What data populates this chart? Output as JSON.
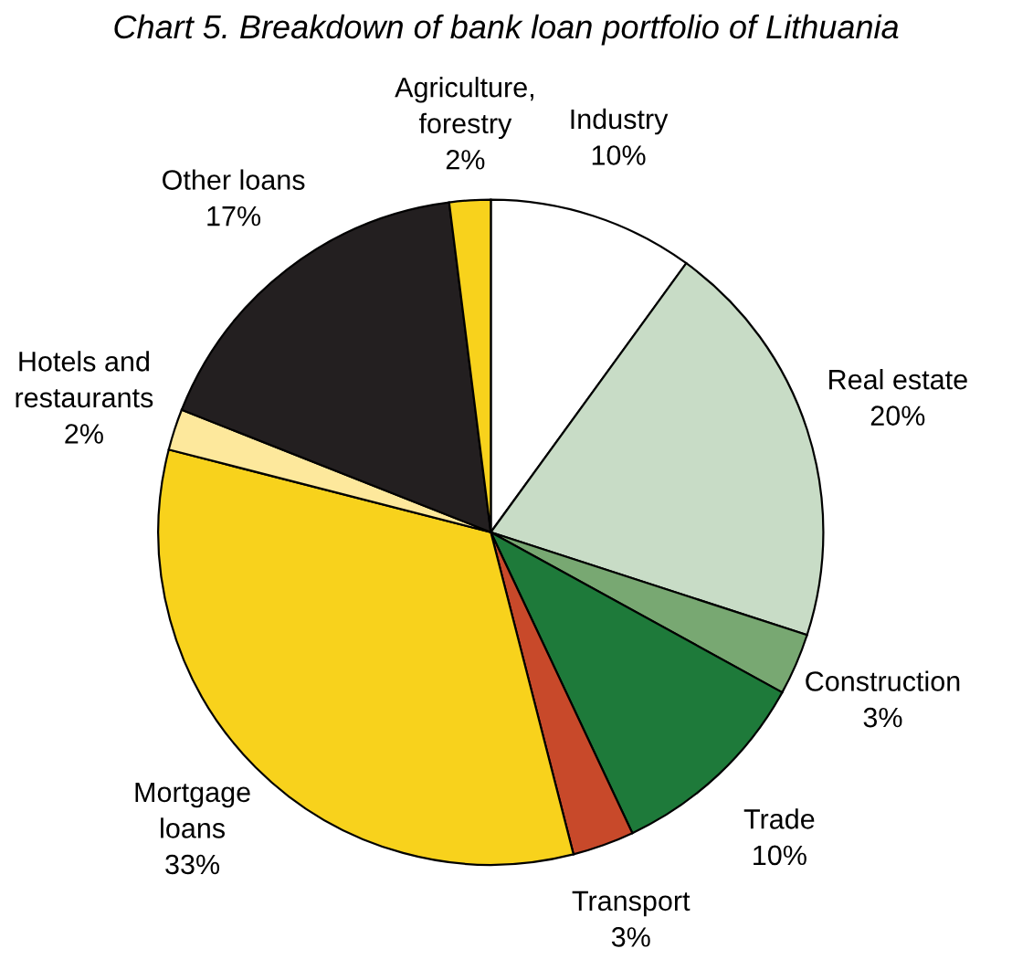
{
  "chart_data": {
    "type": "pie",
    "title": "Chart 5. Breakdown of bank loan portfolio of Lithuania",
    "categories": [
      "Industry",
      "Real estate",
      "Construction",
      "Trade",
      "Transport",
      "Mortgage\nloans",
      "Hotels and\nrestaurants",
      "Other loans",
      "Agriculture,\nforestry"
    ],
    "values": [
      10,
      20,
      3,
      10,
      3,
      33,
      2,
      17,
      2
    ],
    "value_labels": [
      "10%",
      "20%",
      "3%",
      "10%",
      "3%",
      "33%",
      "2%",
      "17%",
      "2%"
    ],
    "colors": [
      "#ffffff",
      "#c8dcc6",
      "#78a872",
      "#1e7a3a",
      "#c8492a",
      "#f8d21c",
      "#fde89c",
      "#231f20",
      "#f8d21c"
    ]
  }
}
